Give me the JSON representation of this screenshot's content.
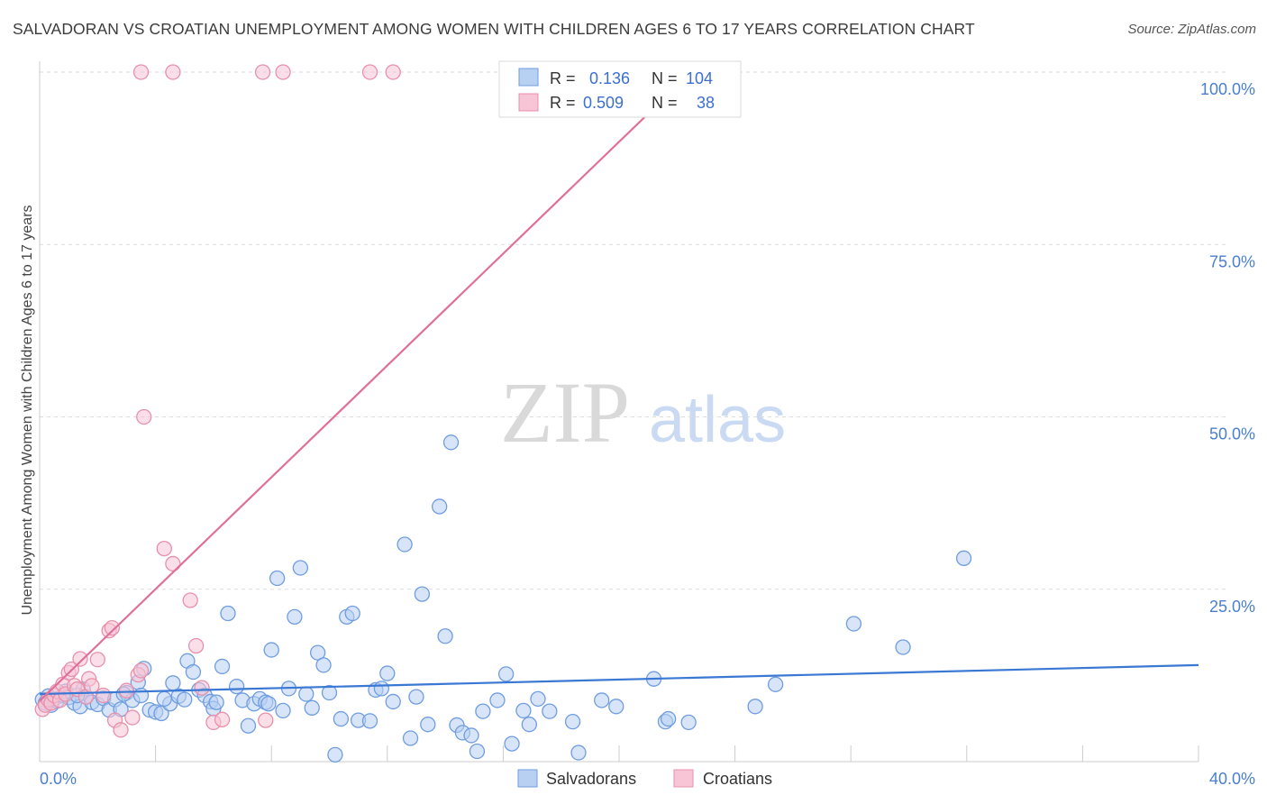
{
  "title": "SALVADORAN VS CROATIAN UNEMPLOYMENT AMONG WOMEN WITH CHILDREN AGES 6 TO 17 YEARS CORRELATION CHART",
  "source": "Source: ZipAtlas.com",
  "watermark": {
    "zip": "ZIP",
    "atlas": "atlas"
  },
  "chart_data": {
    "type": "scatter",
    "title": "SALVADORAN VS CROATIAN UNEMPLOYMENT AMONG WOMEN WITH CHILDREN AGES 6 TO 17 YEARS CORRELATION CHART",
    "xlabel": "",
    "ylabel": "Unemployment Among Women with Children Ages 6 to 17 years",
    "xlim": [
      0,
      40
    ],
    "ylim": [
      0,
      100
    ],
    "x_tick_labels": [
      "0.0%",
      "40.0%"
    ],
    "y_ticks": [
      25,
      50,
      75,
      100
    ],
    "y_tick_labels": [
      "25.0%",
      "50.0%",
      "75.0%",
      "100.0%"
    ],
    "grid": true,
    "series": [
      {
        "name": "Salvadorans",
        "color": "#6f9de0",
        "fill": "#b8d0f2",
        "R": "0.136",
        "N": "104",
        "trend": {
          "x": [
            0,
            40
          ],
          "y": [
            9.8,
            14.0
          ]
        },
        "points": [
          [
            0.1,
            9.0
          ],
          [
            0.2,
            8.5
          ],
          [
            0.3,
            9.5
          ],
          [
            0.4,
            8.2
          ],
          [
            0.5,
            9.1
          ],
          [
            0.6,
            8.8
          ],
          [
            0.8,
            9.6
          ],
          [
            0.9,
            10.2
          ],
          [
            1.0,
            9.3
          ],
          [
            1.2,
            8.5
          ],
          [
            1.4,
            8.0
          ],
          [
            1.5,
            10.5
          ],
          [
            1.6,
            9.4
          ],
          [
            1.8,
            8.6
          ],
          [
            2.0,
            8.3
          ],
          [
            2.2,
            9.2
          ],
          [
            2.4,
            7.5
          ],
          [
            2.6,
            9.0
          ],
          [
            2.8,
            7.6
          ],
          [
            3.0,
            10.0
          ],
          [
            3.2,
            8.9
          ],
          [
            3.4,
            11.5
          ],
          [
            3.5,
            9.6
          ],
          [
            3.6,
            13.5
          ],
          [
            3.8,
            7.5
          ],
          [
            4.0,
            7.2
          ],
          [
            4.2,
            7.0
          ],
          [
            4.5,
            8.4
          ],
          [
            4.6,
            11.4
          ],
          [
            4.8,
            9.5
          ],
          [
            5.0,
            9.0
          ],
          [
            5.1,
            14.6
          ],
          [
            5.3,
            13.0
          ],
          [
            5.5,
            10.4
          ],
          [
            5.7,
            9.6
          ],
          [
            5.9,
            8.7
          ],
          [
            6.0,
            7.7
          ],
          [
            6.3,
            13.8
          ],
          [
            6.5,
            21.5
          ],
          [
            6.8,
            10.9
          ],
          [
            7.0,
            8.9
          ],
          [
            7.2,
            5.2
          ],
          [
            7.4,
            8.4
          ],
          [
            7.6,
            9.1
          ],
          [
            7.8,
            8.6
          ],
          [
            8.0,
            16.2
          ],
          [
            8.2,
            26.6
          ],
          [
            8.4,
            7.4
          ],
          [
            8.6,
            10.6
          ],
          [
            8.8,
            21.0
          ],
          [
            9.0,
            28.1
          ],
          [
            9.2,
            9.8
          ],
          [
            9.4,
            7.8
          ],
          [
            9.6,
            15.8
          ],
          [
            9.8,
            14.0
          ],
          [
            10.0,
            10.0
          ],
          [
            10.2,
            1.0
          ],
          [
            10.4,
            6.2
          ],
          [
            10.6,
            21.0
          ],
          [
            10.8,
            21.5
          ],
          [
            11.0,
            6.0
          ],
          [
            11.4,
            5.9
          ],
          [
            11.6,
            10.4
          ],
          [
            11.8,
            10.6
          ],
          [
            12.0,
            12.8
          ],
          [
            12.2,
            8.7
          ],
          [
            12.6,
            31.5
          ],
          [
            12.8,
            3.4
          ],
          [
            13.0,
            9.4
          ],
          [
            13.2,
            24.3
          ],
          [
            13.4,
            5.4
          ],
          [
            13.8,
            37.0
          ],
          [
            14.0,
            18.2
          ],
          [
            14.2,
            46.3
          ],
          [
            14.4,
            5.3
          ],
          [
            14.6,
            4.2
          ],
          [
            14.9,
            3.8
          ],
          [
            15.1,
            1.5
          ],
          [
            15.3,
            7.3
          ],
          [
            15.8,
            8.9
          ],
          [
            16.1,
            12.7
          ],
          [
            16.3,
            2.6
          ],
          [
            16.7,
            7.4
          ],
          [
            16.9,
            5.4
          ],
          [
            17.2,
            9.1
          ],
          [
            17.6,
            7.3
          ],
          [
            18.4,
            5.8
          ],
          [
            18.6,
            1.3
          ],
          [
            19.4,
            8.9
          ],
          [
            19.9,
            8.0
          ],
          [
            21.2,
            12.0
          ],
          [
            21.6,
            5.8
          ],
          [
            21.7,
            6.2
          ],
          [
            22.4,
            5.7
          ],
          [
            24.7,
            8.0
          ],
          [
            25.4,
            11.2
          ],
          [
            28.1,
            20.0
          ],
          [
            29.8,
            16.6
          ],
          [
            31.9,
            29.5
          ],
          [
            1.3,
            9.6
          ],
          [
            2.9,
            9.8
          ],
          [
            4.3,
            9.1
          ],
          [
            6.1,
            8.6
          ],
          [
            7.9,
            8.4
          ]
        ]
      },
      {
        "name": "Croatians",
        "color": "#e890ab",
        "fill": "#f7c5d5",
        "R": "0.509",
        "N": "38",
        "trend": {
          "x": [
            0,
            22
          ],
          "y": [
            8.8,
            98.0
          ]
        },
        "points": [
          [
            0.1,
            7.6
          ],
          [
            0.2,
            8.2
          ],
          [
            0.3,
            9.0
          ],
          [
            0.4,
            8.5
          ],
          [
            0.5,
            9.6
          ],
          [
            0.6,
            10.2
          ],
          [
            0.7,
            8.9
          ],
          [
            0.8,
            11.2
          ],
          [
            0.9,
            9.8
          ],
          [
            1.0,
            12.9
          ],
          [
            1.1,
            13.4
          ],
          [
            1.2,
            11.0
          ],
          [
            1.3,
            10.5
          ],
          [
            1.4,
            14.9
          ],
          [
            1.6,
            9.4
          ],
          [
            1.7,
            12.0
          ],
          [
            1.8,
            11.0
          ],
          [
            2.0,
            14.8
          ],
          [
            2.2,
            9.6
          ],
          [
            2.4,
            19.0
          ],
          [
            2.5,
            19.4
          ],
          [
            2.6,
            6.0
          ],
          [
            2.8,
            4.6
          ],
          [
            3.0,
            10.3
          ],
          [
            3.2,
            6.4
          ],
          [
            3.4,
            12.6
          ],
          [
            3.5,
            13.2
          ],
          [
            3.6,
            50.0
          ],
          [
            4.3,
            30.9
          ],
          [
            4.6,
            28.7
          ],
          [
            5.2,
            23.4
          ],
          [
            5.4,
            16.8
          ],
          [
            5.6,
            10.7
          ],
          [
            6.0,
            5.7
          ],
          [
            6.3,
            6.1
          ],
          [
            7.8,
            6.0
          ],
          [
            11.4,
            100.0
          ],
          [
            12.2,
            100.0
          ]
        ]
      }
    ],
    "top_outliers_pink_x": [
      3.5,
      4.6,
      7.7,
      8.4
    ]
  },
  "legend": {
    "row1": {
      "r_label": "R =",
      "r_value": "0.136",
      "n_label": "N =",
      "n_value": "104"
    },
    "row2": {
      "r_label": "R =",
      "r_value": "0.509",
      "n_label": "N =",
      "n_value": "38"
    }
  },
  "bottom_legend": {
    "salvadorans": "Salvadorans",
    "croatians": "Croatians"
  }
}
